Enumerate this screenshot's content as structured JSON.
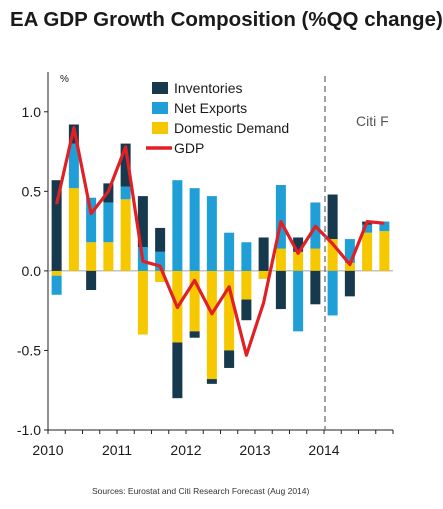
{
  "chart_data": {
    "type": "bar",
    "title": "EA GDP Growth Composition (%QQ change)",
    "ylabel_unit": "%",
    "ylim": [
      -1.0,
      1.25
    ],
    "yticks": [
      "1.0",
      "0.5",
      "0.0",
      "-0.5",
      "-1.0"
    ],
    "ytick_values": [
      1.0,
      0.5,
      0.0,
      -0.5,
      -1.0
    ],
    "x_labels": [
      {
        "label": "2010",
        "q": 0
      },
      {
        "label": "2011",
        "q": 4
      },
      {
        "label": "2012",
        "q": 8
      },
      {
        "label": "2013",
        "q": 12
      },
      {
        "label": "2014",
        "q": 16
      }
    ],
    "quarters": 20,
    "forecast_start_q": 16,
    "forecast_label": "Citi F",
    "legend": [
      {
        "name": "Inventories",
        "color": "#17394e",
        "kind": "box"
      },
      {
        "name": "Net Exports",
        "color": "#1f9fd6",
        "kind": "box"
      },
      {
        "name": "Domestic Demand",
        "color": "#f5c800",
        "kind": "box"
      },
      {
        "name": "GDP",
        "color": "#e02025",
        "kind": "line"
      }
    ],
    "series": [
      {
        "name": "Domestic Demand",
        "color": "#f5c800",
        "values": [
          -0.03,
          0.52,
          0.18,
          0.18,
          0.45,
          -0.4,
          -0.07,
          -0.45,
          -0.38,
          -0.68,
          -0.5,
          -0.18,
          -0.05,
          0.14,
          0.12,
          0.14,
          0.2,
          0.05,
          0.24,
          0.25
        ]
      },
      {
        "name": "Net Exports",
        "color": "#1f9fd6",
        "values": [
          -0.12,
          0.28,
          0.28,
          0.25,
          0.08,
          0.15,
          0.12,
          0.57,
          0.52,
          0.47,
          0.24,
          0.18,
          0.0,
          0.4,
          -0.38,
          0.29,
          -0.28,
          0.15,
          0.05,
          0.06
        ]
      },
      {
        "name": "Inventories",
        "color": "#17394e",
        "values": [
          0.57,
          0.12,
          -0.12,
          0.12,
          0.27,
          0.32,
          0.15,
          -0.35,
          -0.04,
          -0.03,
          -0.11,
          -0.13,
          0.21,
          -0.24,
          0.09,
          -0.21,
          0.28,
          -0.16,
          0.02,
          0.0
        ]
      }
    ],
    "gdp": [
      0.42,
      0.9,
      0.36,
      0.5,
      0.78,
      0.06,
      0.03,
      -0.23,
      -0.06,
      -0.27,
      -0.1,
      -0.53,
      -0.2,
      0.31,
      0.11,
      0.28,
      0.17,
      0.04,
      0.31,
      0.3
    ]
  },
  "source_note": "Sources: Eurostat and Citi Research Forecast (Aug 2014)"
}
